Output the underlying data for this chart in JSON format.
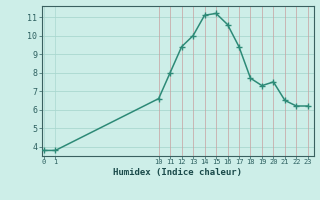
{
  "x": [
    0,
    1,
    10,
    11,
    12,
    13,
    14,
    15,
    16,
    17,
    18,
    19,
    20,
    21,
    22,
    23
  ],
  "y": [
    3.8,
    3.8,
    6.6,
    8.0,
    9.4,
    10.0,
    11.1,
    11.2,
    10.6,
    9.4,
    7.7,
    7.3,
    7.5,
    6.5,
    6.2,
    6.2
  ],
  "xlabel": "Humidex (Indice chaleur)",
  "ylabel_ticks": [
    4,
    5,
    6,
    7,
    8,
    9,
    10,
    11
  ],
  "xtick_labels": [
    "0",
    "1",
    "10",
    "11",
    "12",
    "13",
    "14",
    "15",
    "16",
    "17",
    "18",
    "19",
    "20",
    "21",
    "22",
    "23"
  ],
  "xticks_pos": [
    0,
    1,
    10,
    11,
    12,
    13,
    14,
    15,
    16,
    17,
    18,
    19,
    20,
    21,
    22,
    23
  ],
  "xlim": [
    -0.2,
    23.5
  ],
  "ylim": [
    3.5,
    11.6
  ],
  "line_color": "#2d8a77",
  "bg_color": "#cdeee8",
  "grid_color_h": "#aad8d0",
  "grid_color_v": "#c8a0a0",
  "axis_color": "#3a6060",
  "tick_color": "#2d6060",
  "label_color": "#1a4a4a"
}
